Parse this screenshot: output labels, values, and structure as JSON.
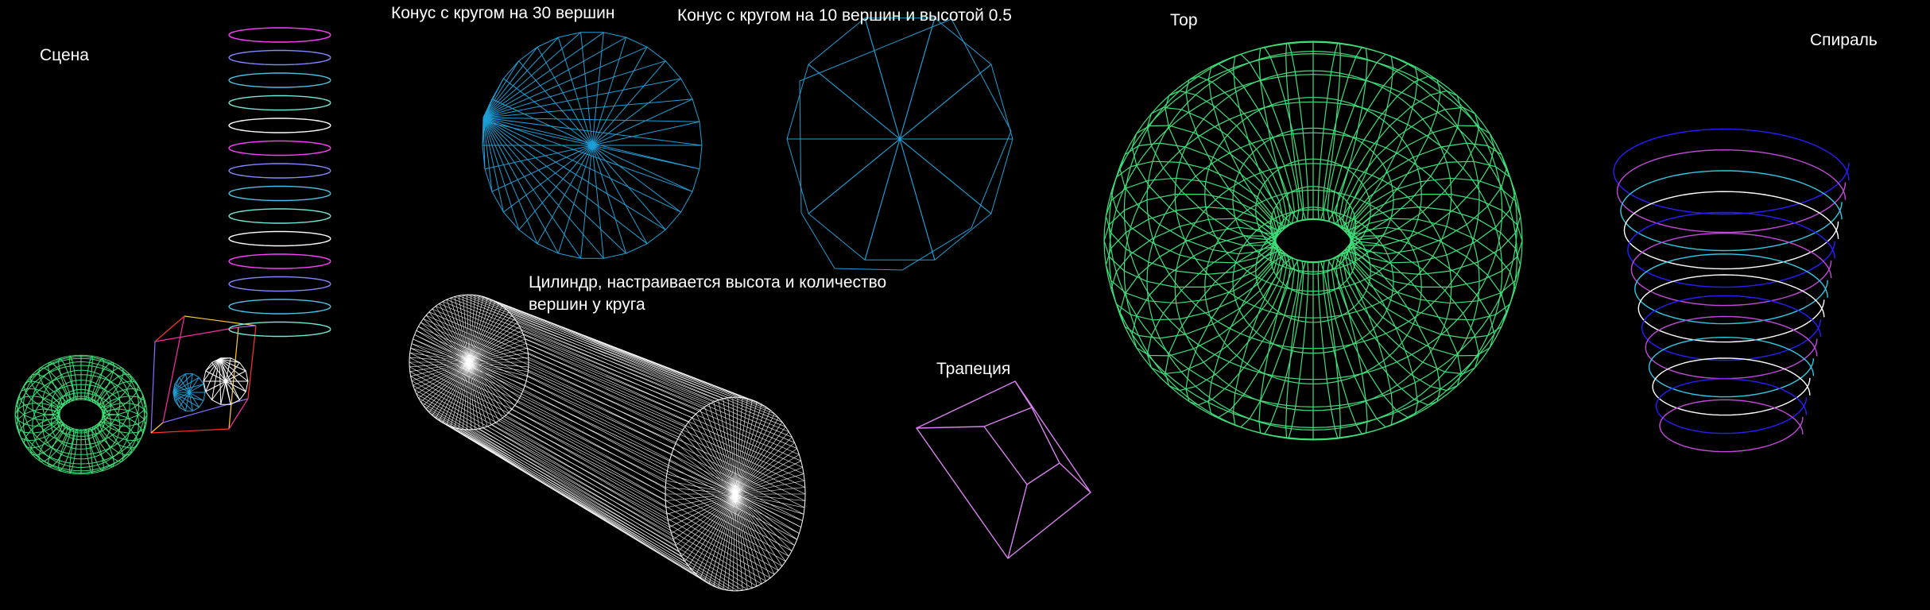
{
  "labels": {
    "scene": "Сцена",
    "cone30": "Конус с кругом на 30 вершин",
    "cone10": "Конус с кругом на 10 вершин и высотой 0.5",
    "cylinder_line1": "Цилиндр, настраивается высота и количество",
    "cylinder_line2": "вершин у круга",
    "trapezoid": "Трапеция",
    "torus": "Тор",
    "spiral": "Спираль"
  },
  "colors": {
    "background": "#000000",
    "label_text": "#ffffff",
    "cone_wire": "#1e9fd6",
    "cylinder_wire": "#ffffff",
    "trapezoid_wire": "#d980f0",
    "torus_wire": "#3ee07a",
    "spiral_gradient": [
      "#2a1cff",
      "#c04ad8",
      "#32c8e6",
      "#ffffff"
    ]
  },
  "figures": {
    "cone_vertices_a": 30,
    "cone_vertices_b": 10,
    "cone_b_height": 0.5
  }
}
